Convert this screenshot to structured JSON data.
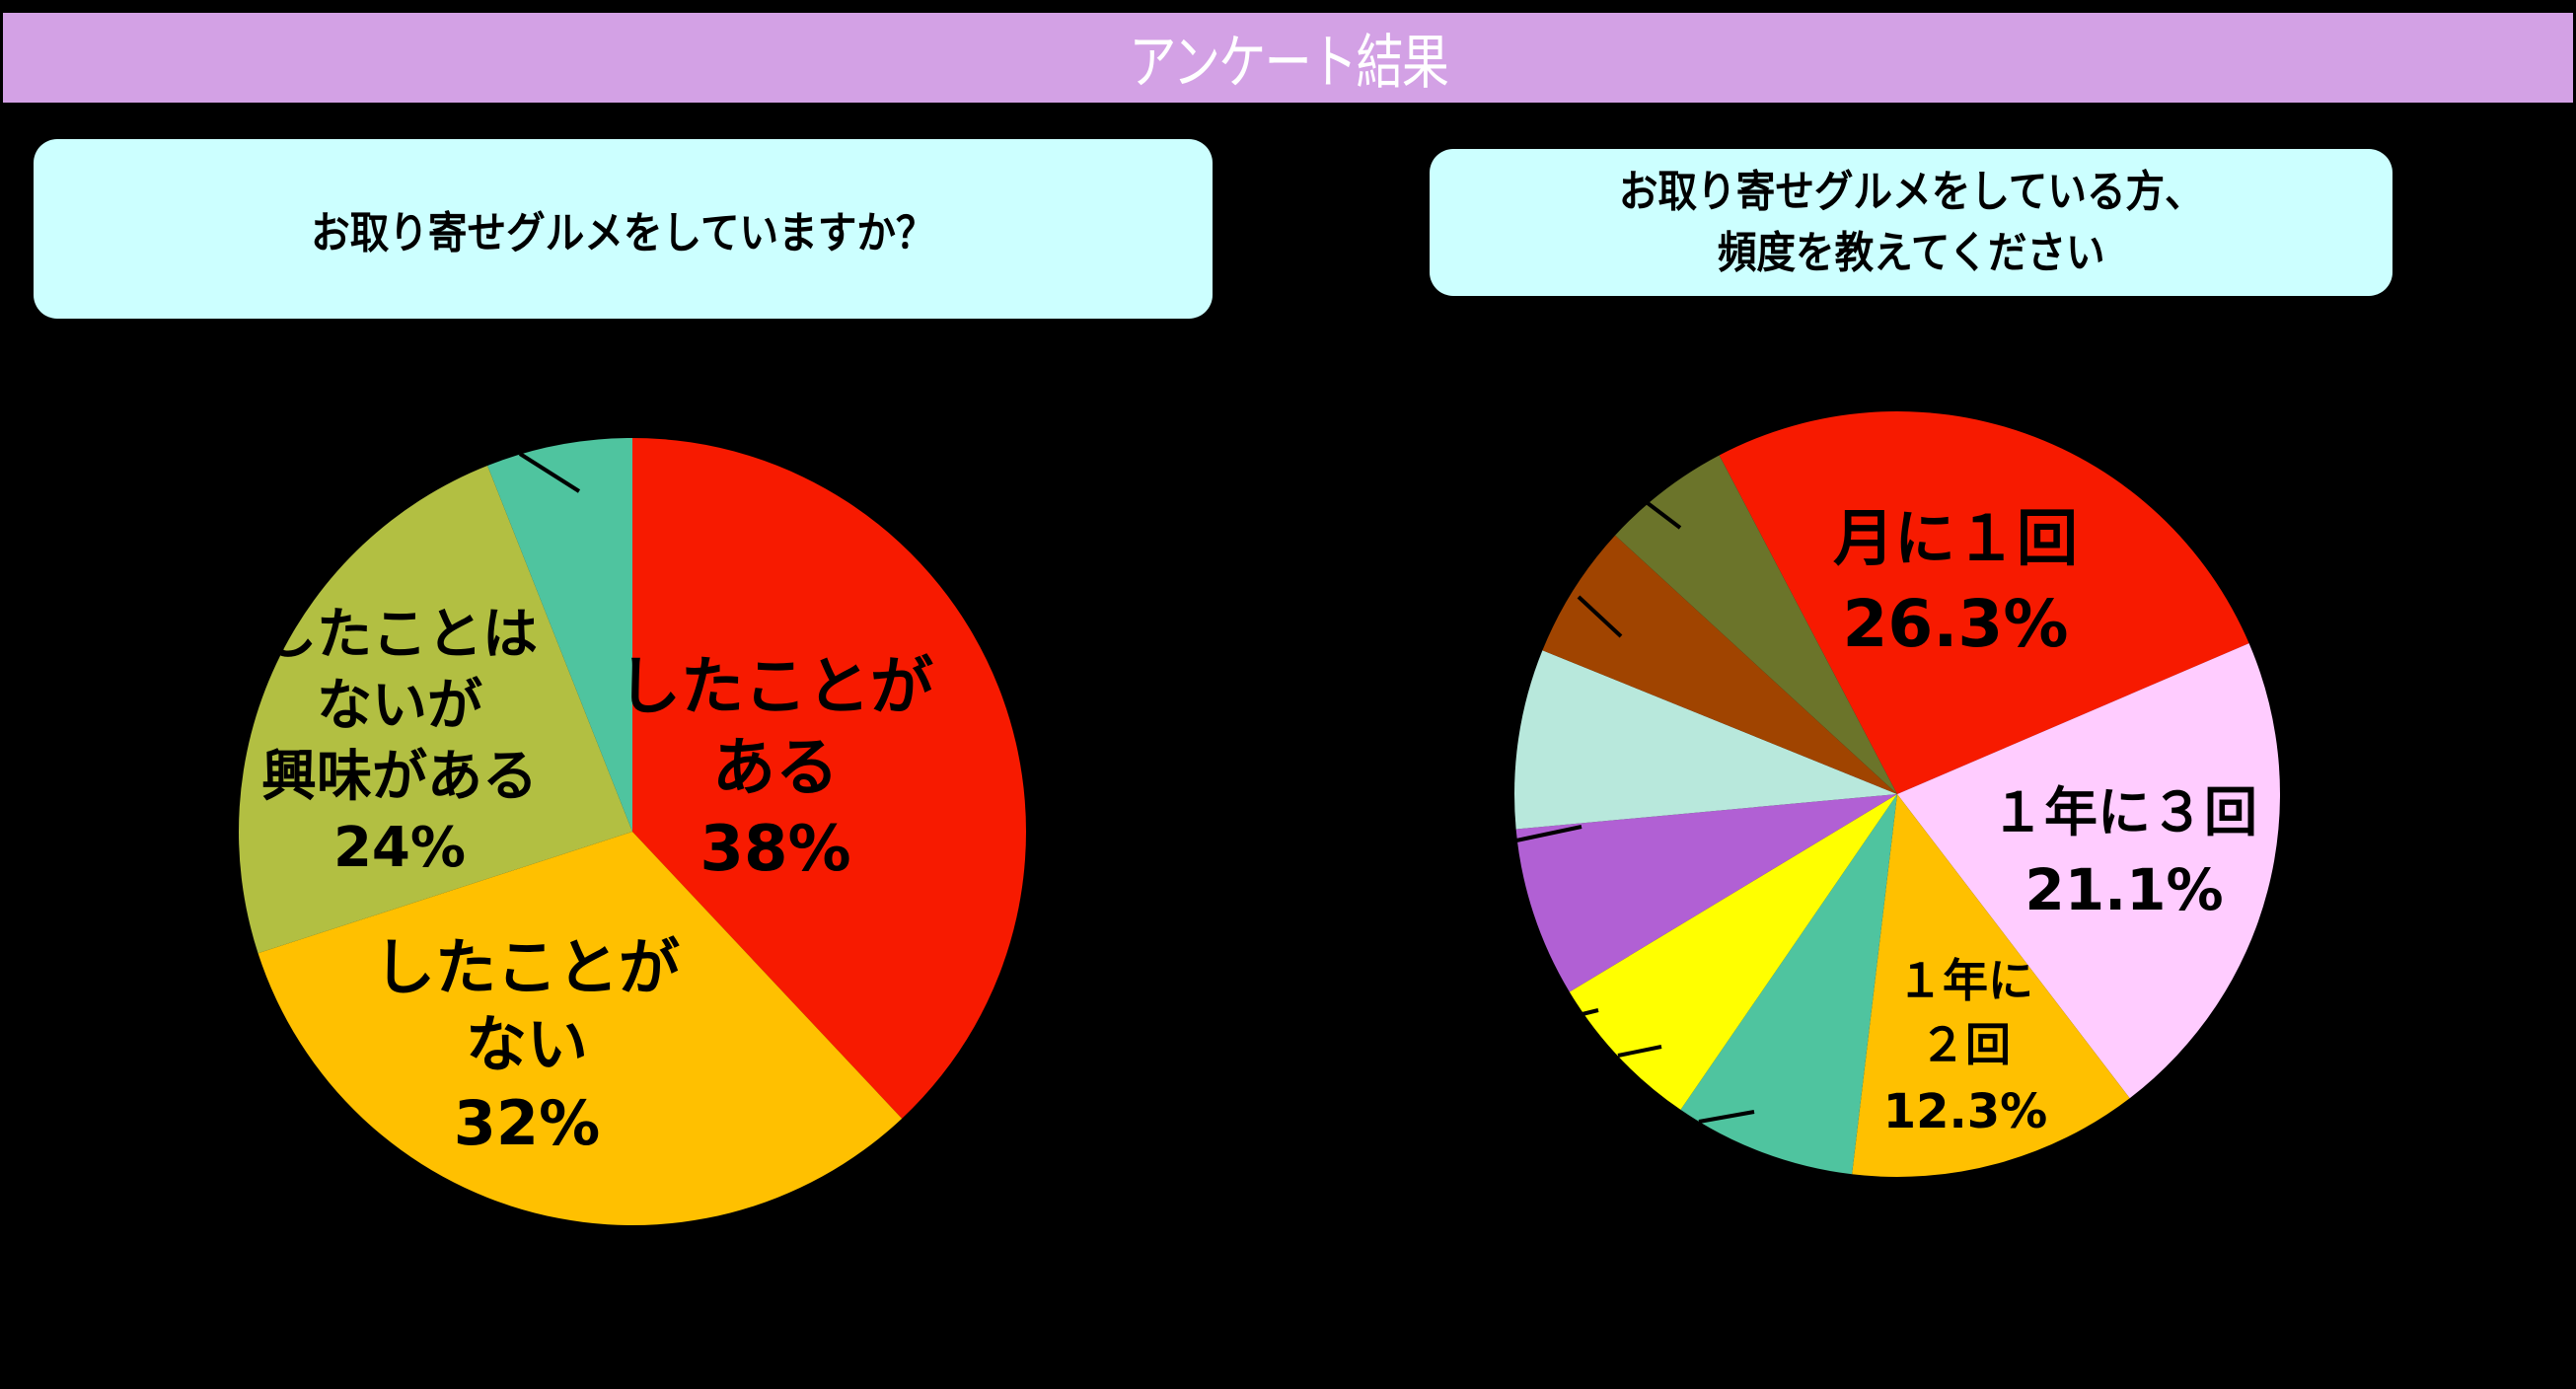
{
  "header": {
    "title": "アンケート結果",
    "bg_color": "#D3A1E5"
  },
  "questions": {
    "left": {
      "lines": [
        "お取り寄せグルメをしていますか？"
      ]
    },
    "right": {
      "lines": [
        "お取り寄せグルメをしている方、",
        "頻度を教えてください"
      ]
    }
  },
  "chart_data": [
    {
      "type": "pie",
      "title": "お取り寄せグルメをしていますか？",
      "start_angle_deg": 0,
      "direction": "clockwise",
      "slices": [
        {
          "label": "したことがある",
          "value": 38,
          "display": "38%",
          "color": "#F71A00",
          "label_lines": [
            "したことが",
            "ある",
            "38%"
          ]
        },
        {
          "label": "したことがない",
          "value": 32,
          "display": "32%",
          "color": "#FFC000",
          "label_lines": [
            "したことが",
            "ない",
            "32%"
          ]
        },
        {
          "label": "したことはないが興味がある",
          "value": 24,
          "display": "24%",
          "color": "#B2BF42",
          "label_lines": [
            "したことは",
            "ないが",
            "興味がある",
            "24%"
          ]
        },
        {
          "label": "",
          "value": 6,
          "display": "",
          "color": "#4FC49F",
          "label_lines": []
        }
      ]
    },
    {
      "type": "pie",
      "title": "お取り寄せグルメをしている方、頻度を教えてください",
      "start_angle_deg": -27.7,
      "direction": "clockwise",
      "slices": [
        {
          "label": "月に１回",
          "value": 26.3,
          "display": "26.3%",
          "color": "#F71A00",
          "label_lines": [
            "月に１回",
            "26.3%"
          ]
        },
        {
          "label": "１年に３回",
          "value": 21.1,
          "display": "21.1%",
          "color": "#FFCCFF",
          "label_lines": [
            "１年に３回",
            "21.1%"
          ]
        },
        {
          "label": "１年に２回",
          "value": 12.3,
          "display": "12.3%",
          "color": "#FFC000",
          "label_lines": [
            "１年に",
            "２回",
            "12.3%"
          ]
        },
        {
          "label": "",
          "value": 7.7,
          "display": "",
          "color": "#4FC49F",
          "label_lines": []
        },
        {
          "label": "",
          "value": 6.8,
          "display": "",
          "color": "#FFFF00",
          "label_lines": []
        },
        {
          "label": "",
          "value": 7.2,
          "display": "",
          "color": "#B160D4",
          "label_lines": []
        },
        {
          "label": "",
          "value": 7.6,
          "display": "",
          "color": "#B8E8DC",
          "label_lines": []
        },
        {
          "label": "",
          "value": 5.7,
          "display": "",
          "color": "#A04400",
          "label_lines": []
        },
        {
          "label": "",
          "value": 5.5,
          "display": "",
          "color": "#6B742A",
          "label_lines": []
        }
      ]
    }
  ]
}
